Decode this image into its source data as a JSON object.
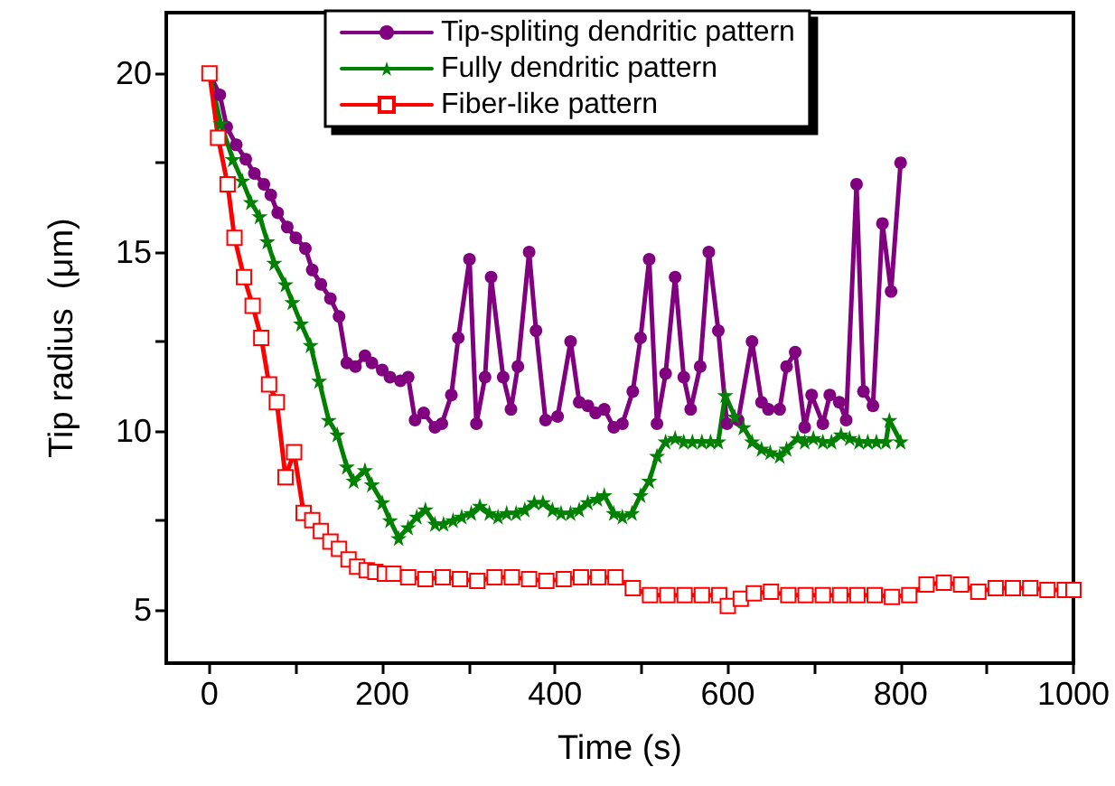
{
  "chart_data": {
    "type": "line",
    "xlabel": "Time (s)",
    "ylabel": "Tip radius  (μm)",
    "xlim": [
      -50,
      1000
    ],
    "ylim": [
      3.5,
      21.7
    ],
    "xticks": [
      0,
      {
        "value": 100,
        "label": null
      },
      200,
      {
        "value": 300,
        "label": null
      },
      400,
      {
        "value": 500,
        "label": null
      },
      600,
      {
        "value": 700,
        "label": null
      },
      800,
      {
        "value": 900,
        "label": null
      },
      1000
    ],
    "yticks": [
      5,
      {
        "value": 7.5,
        "label": null
      },
      10,
      {
        "value": 12.5,
        "label": null
      },
      15,
      {
        "value": 17.5,
        "label": null
      },
      20
    ],
    "grid": false,
    "legend": "top",
    "line_style": "solid",
    "series": [
      {
        "name": "Tip-spliting dendritic pattern",
        "color": "#800080",
        "marker": "circle",
        "x": [
          0,
          12,
          20,
          31,
          42,
          52,
          63,
          71,
          79,
          90,
          100,
          111,
          119,
          129,
          140,
          150,
          159,
          169,
          180,
          188,
          200,
          209,
          221,
          230,
          238,
          248,
          261,
          269,
          280,
          288,
          301,
          309,
          319,
          326,
          340,
          349,
          357,
          370,
          378,
          389,
          403,
          418,
          428,
          438,
          447,
          457,
          468,
          478,
          490,
          499,
          509,
          518,
          528,
          539,
          549,
          557,
          568,
          578,
          589,
          599,
          612,
          628,
          639,
          647,
          660,
          668,
          678,
          689,
          697,
          710,
          718,
          729,
          737,
          749,
          757,
          768,
          779,
          789,
          800
        ],
        "values": [
          20,
          19.4,
          18.5,
          18.0,
          17.6,
          17.2,
          16.9,
          16.6,
          16.1,
          15.7,
          15.4,
          15.1,
          14.5,
          14.1,
          13.7,
          13.2,
          11.9,
          11.8,
          12.1,
          11.9,
          11.7,
          11.5,
          11.4,
          11.5,
          10.3,
          10.5,
          10.1,
          10.2,
          11.0,
          12.6,
          14.8,
          10.2,
          11.5,
          14.3,
          11.5,
          10.6,
          11.8,
          15.0,
          12.8,
          10.3,
          10.4,
          12.5,
          10.8,
          10.7,
          10.5,
          10.6,
          10.1,
          10.2,
          11.1,
          12.6,
          14.8,
          10.2,
          11.6,
          14.3,
          11.5,
          10.6,
          11.8,
          15.0,
          12.8,
          10.2,
          10.3,
          12.5,
          10.8,
          10.6,
          10.6,
          11.8,
          12.2,
          10.1,
          11.0,
          10.2,
          11.0,
          10.8,
          10.3,
          16.9,
          11.1,
          10.7,
          15.8,
          13.9,
          17.5
        ]
      },
      {
        "name": "Fully dendritic pattern",
        "color": "#008000",
        "marker": "star",
        "x": [
          0,
          13,
          27,
          38,
          48,
          58,
          67,
          75,
          88,
          96,
          106,
          117,
          127,
          138,
          148,
          159,
          167,
          180,
          188,
          200,
          209,
          219,
          230,
          240,
          250,
          261,
          271,
          282,
          292,
          303,
          313,
          324,
          334,
          344,
          355,
          365,
          376,
          386,
          397,
          407,
          418,
          428,
          438,
          449,
          457,
          468,
          478,
          489,
          499,
          509,
          518,
          528,
          539,
          549,
          559,
          570,
          580,
          589,
          597,
          608,
          618,
          628,
          639,
          649,
          660,
          668,
          681,
          689,
          699,
          710,
          720,
          731,
          741,
          752,
          762,
          772,
          783,
          787,
          800
        ],
        "values": [
          20,
          18.6,
          17.6,
          17.0,
          16.4,
          16.0,
          15.3,
          14.7,
          14.1,
          13.6,
          13.0,
          12.4,
          11.4,
          10.3,
          9.9,
          9.0,
          8.6,
          8.9,
          8.5,
          8.0,
          7.5,
          7.0,
          7.3,
          7.6,
          7.8,
          7.4,
          7.4,
          7.5,
          7.6,
          7.7,
          7.9,
          7.7,
          7.6,
          7.7,
          7.7,
          7.8,
          8.0,
          8.0,
          7.8,
          7.7,
          7.7,
          7.8,
          8.0,
          8.1,
          8.2,
          7.7,
          7.6,
          7.7,
          8.2,
          8.6,
          9.3,
          9.7,
          9.8,
          9.7,
          9.7,
          9.7,
          9.7,
          9.7,
          11.0,
          10.4,
          10.1,
          9.7,
          9.5,
          9.4,
          9.3,
          9.5,
          9.8,
          9.7,
          9.8,
          9.7,
          9.7,
          9.9,
          9.8,
          9.7,
          9.7,
          9.7,
          9.7,
          10.3,
          9.7
        ]
      },
      {
        "name": "Fiber-like pattern",
        "color": "#ff0000",
        "marker": "square",
        "x": [
          0,
          10,
          21,
          29,
          40,
          50,
          60,
          69,
          78,
          88,
          98,
          109,
          119,
          129,
          140,
          150,
          161,
          171,
          182,
          192,
          203,
          213,
          230,
          250,
          270,
          290,
          310,
          330,
          350,
          370,
          390,
          410,
          430,
          450,
          470,
          490,
          510,
          530,
          550,
          570,
          590,
          600,
          615,
          630,
          650,
          670,
          690,
          710,
          730,
          750,
          770,
          790,
          810,
          830,
          850,
          870,
          890,
          910,
          930,
          950,
          970,
          990,
          1000
        ],
        "values": [
          20,
          18.2,
          16.9,
          15.4,
          14.3,
          13.5,
          12.6,
          11.3,
          10.8,
          8.7,
          9.4,
          7.7,
          7.5,
          7.2,
          6.9,
          6.7,
          6.4,
          6.2,
          6.1,
          6.05,
          6.0,
          6.0,
          5.9,
          5.85,
          5.9,
          5.85,
          5.8,
          5.9,
          5.9,
          5.85,
          5.8,
          5.85,
          5.9,
          5.9,
          5.9,
          5.6,
          5.4,
          5.4,
          5.4,
          5.4,
          5.4,
          5.1,
          5.3,
          5.45,
          5.5,
          5.4,
          5.4,
          5.4,
          5.4,
          5.4,
          5.4,
          5.35,
          5.4,
          5.7,
          5.75,
          5.7,
          5.5,
          5.6,
          5.6,
          5.6,
          5.55,
          5.55,
          5.55
        ]
      }
    ]
  }
}
